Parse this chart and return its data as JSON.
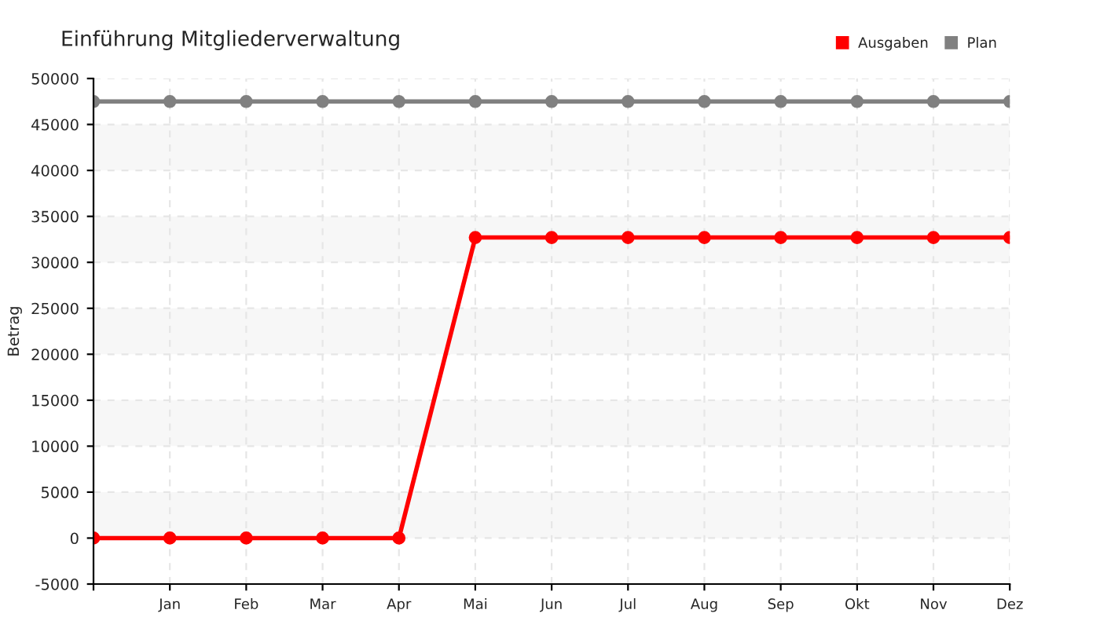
{
  "chart_data": {
    "type": "line",
    "title": "Einführung Mitgliederverwaltung",
    "ylabel": "Betrag",
    "categories": [
      null,
      "Jan",
      "Feb",
      "Mar",
      "Apr",
      "Mai",
      "Jun",
      "Jul",
      "Aug",
      "Sep",
      "Okt",
      "Nov",
      "Dez"
    ],
    "series": [
      {
        "name": "Ausgaben",
        "color": "#ff0000",
        "values": [
          0,
          0,
          0,
          0,
          0,
          32700,
          32700,
          32700,
          32700,
          32700,
          32700,
          32700,
          32700
        ]
      },
      {
        "name": "Plan",
        "color": "#808080",
        "values": [
          47500,
          47500,
          47500,
          47500,
          47500,
          47500,
          47500,
          47500,
          47500,
          47500,
          47500,
          47500,
          47500
        ]
      }
    ],
    "ylim": [
      -5000,
      50000
    ],
    "yticks": [
      -5000,
      0,
      5000,
      10000,
      15000,
      20000,
      25000,
      30000,
      35000,
      40000,
      45000,
      50000
    ],
    "grid": true,
    "legend": "top right",
    "marker": "circle",
    "line_style": "solid"
  }
}
